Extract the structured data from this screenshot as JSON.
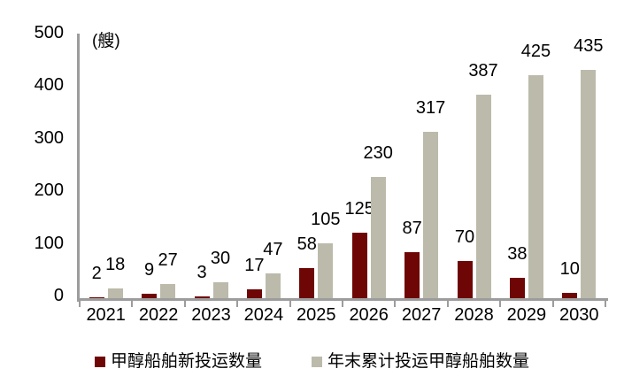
{
  "chart_data": {
    "type": "bar",
    "unit_label": "(艘)",
    "categories": [
      "2021",
      "2022",
      "2023",
      "2024",
      "2025",
      "2026",
      "2027",
      "2028",
      "2029",
      "2030"
    ],
    "series": [
      {
        "key": "new-ships",
        "name": "甲醇船舶新投运数量",
        "color": "#6E0605",
        "values": [
          2,
          9,
          3,
          17,
          58,
          125,
          87,
          70,
          38,
          10
        ]
      },
      {
        "key": "cumulative-ships",
        "name": "年末累计投运甲醇船舶数量",
        "color": "#BCBAAB",
        "values": [
          18,
          27,
          30,
          47,
          105,
          230,
          317,
          387,
          425,
          435
        ]
      }
    ],
    "ylim": [
      0,
      500
    ],
    "yticks": [
      0,
      100,
      200,
      300,
      400,
      500
    ],
    "grid": false,
    "legend_position": "bottom",
    "colors": {
      "axis": "#9C9C9C",
      "text": "#000000"
    }
  }
}
